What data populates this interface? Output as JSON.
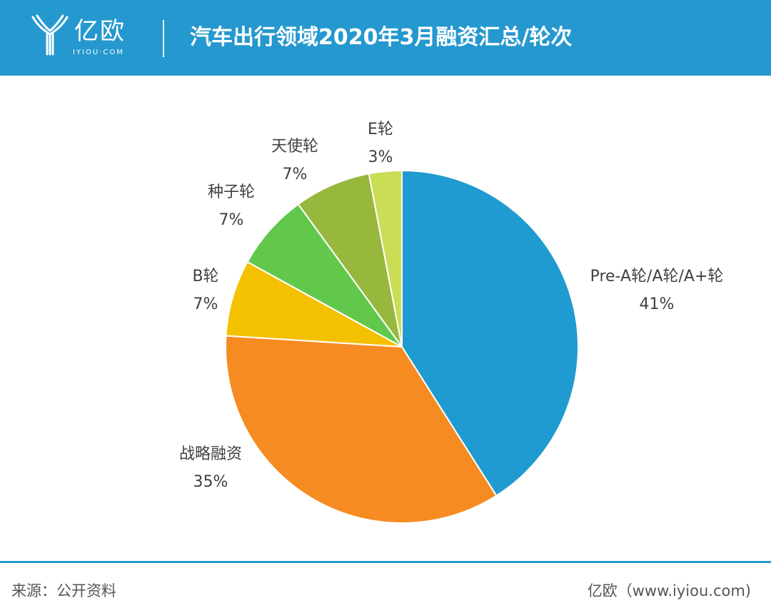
{
  "header": {
    "logo_cn": "亿欧",
    "logo_en": "IYIOU·COM",
    "title": "汽车出行领域2020年3月融资汇总/轮次",
    "bg_color": "#2598cf"
  },
  "chart_data": {
    "type": "pie",
    "title": "汽车出行领域2020年3月融资汇总/轮次",
    "slices": [
      {
        "name": "Pre-A轮/A轮/A+轮",
        "value": 41,
        "label": "41%",
        "color": "#1f9bd1"
      },
      {
        "name": "战略融资",
        "value": 35,
        "label": "35%",
        "color": "#f68b22"
      },
      {
        "name": "B轮",
        "value": 7,
        "label": "7%",
        "color": "#f4c100"
      },
      {
        "name": "种子轮",
        "value": 7,
        "label": "7%",
        "color": "#61c84c"
      },
      {
        "name": "天使轮",
        "value": 7,
        "label": "7%",
        "color": "#97b83d"
      },
      {
        "name": "E轮",
        "value": 3,
        "label": "3%",
        "color": "#cbdc55"
      }
    ]
  },
  "footer": {
    "source": "来源：公开资料",
    "brand": "亿欧（www.iyiou.com)"
  }
}
